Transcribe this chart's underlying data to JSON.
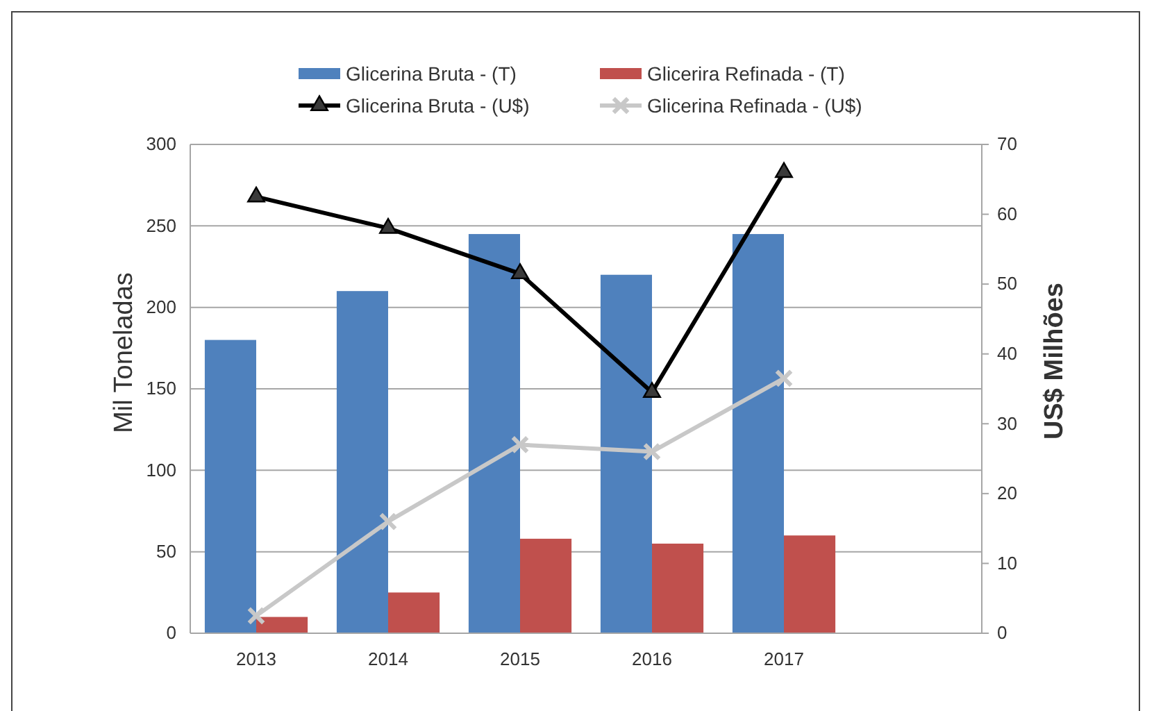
{
  "chart_data": {
    "type": "bar",
    "categories": [
      "2013",
      "2014",
      "2015",
      "2016",
      "2017",
      null
    ],
    "ylabel": "Mil Toneladas",
    "y2label": "US$ Milhões",
    "ylim": [
      0,
      300
    ],
    "yticks": [
      0,
      50,
      100,
      150,
      200,
      250,
      300
    ],
    "y2lim": [
      0,
      70
    ],
    "y2ticks": [
      0,
      10,
      20,
      30,
      40,
      50,
      60,
      70
    ],
    "grid": "y",
    "legend": "top",
    "series": [
      {
        "name": "Glicerina Bruta - (T)",
        "color": "#4f81bd",
        "values": [
          180,
          210,
          245,
          220,
          245,
          null
        ]
      },
      {
        "name": "Glicerira Refinada - (T)",
        "color": "#c0504d",
        "values": [
          10,
          25,
          58,
          55,
          60,
          null
        ]
      },
      {
        "name": "Glicerina Bruta - (U$)",
        "type": "line",
        "axis": "y2",
        "color": "#000000",
        "marker": "triangle",
        "values": [
          62.5,
          58,
          51.5,
          34.5,
          66,
          null
        ]
      },
      {
        "name": "Glicerina Refinada - (U$)",
        "type": "line",
        "axis": "y2",
        "color": "#c8c8c8",
        "marker": "cross",
        "values": [
          2.5,
          16,
          27,
          26,
          36.5,
          null
        ]
      }
    ]
  }
}
